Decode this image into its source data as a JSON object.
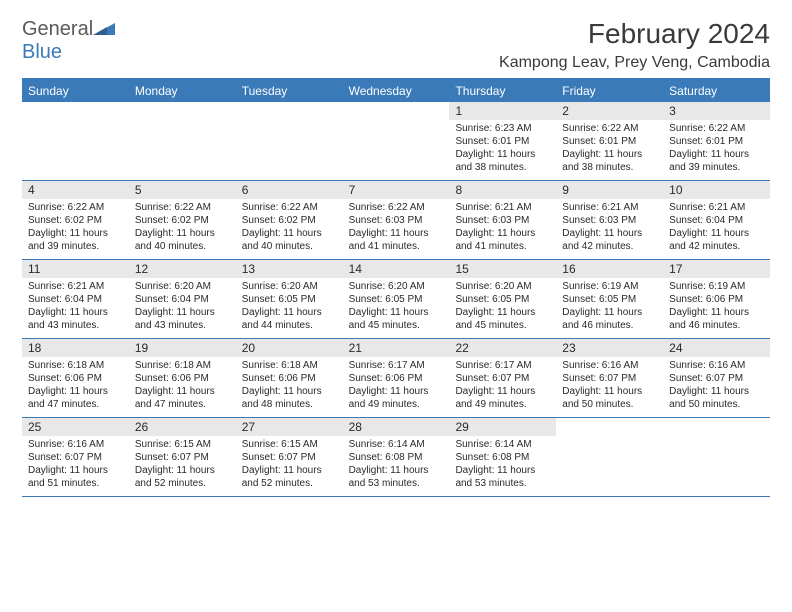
{
  "logo": {
    "text1": "General",
    "text2": "Blue",
    "icon_color": "#3a7ab8"
  },
  "title": "February 2024",
  "location": "Kampong Leav, Prey Veng, Cambodia",
  "colors": {
    "header_bg": "#3a7ab8",
    "header_text": "#ffffff",
    "daynum_bg": "#e8e8e8",
    "border": "#3a7ab8",
    "text": "#2a2a2a"
  },
  "day_names": [
    "Sunday",
    "Monday",
    "Tuesday",
    "Wednesday",
    "Thursday",
    "Friday",
    "Saturday"
  ],
  "weeks": [
    [
      {
        "empty": true
      },
      {
        "empty": true
      },
      {
        "empty": true
      },
      {
        "empty": true
      },
      {
        "n": "1",
        "sr": "6:23 AM",
        "ss": "6:01 PM",
        "dl": "11 hours and 38 minutes."
      },
      {
        "n": "2",
        "sr": "6:22 AM",
        "ss": "6:01 PM",
        "dl": "11 hours and 38 minutes."
      },
      {
        "n": "3",
        "sr": "6:22 AM",
        "ss": "6:01 PM",
        "dl": "11 hours and 39 minutes."
      }
    ],
    [
      {
        "n": "4",
        "sr": "6:22 AM",
        "ss": "6:02 PM",
        "dl": "11 hours and 39 minutes."
      },
      {
        "n": "5",
        "sr": "6:22 AM",
        "ss": "6:02 PM",
        "dl": "11 hours and 40 minutes."
      },
      {
        "n": "6",
        "sr": "6:22 AM",
        "ss": "6:02 PM",
        "dl": "11 hours and 40 minutes."
      },
      {
        "n": "7",
        "sr": "6:22 AM",
        "ss": "6:03 PM",
        "dl": "11 hours and 41 minutes."
      },
      {
        "n": "8",
        "sr": "6:21 AM",
        "ss": "6:03 PM",
        "dl": "11 hours and 41 minutes."
      },
      {
        "n": "9",
        "sr": "6:21 AM",
        "ss": "6:03 PM",
        "dl": "11 hours and 42 minutes."
      },
      {
        "n": "10",
        "sr": "6:21 AM",
        "ss": "6:04 PM",
        "dl": "11 hours and 42 minutes."
      }
    ],
    [
      {
        "n": "11",
        "sr": "6:21 AM",
        "ss": "6:04 PM",
        "dl": "11 hours and 43 minutes."
      },
      {
        "n": "12",
        "sr": "6:20 AM",
        "ss": "6:04 PM",
        "dl": "11 hours and 43 minutes."
      },
      {
        "n": "13",
        "sr": "6:20 AM",
        "ss": "6:05 PM",
        "dl": "11 hours and 44 minutes."
      },
      {
        "n": "14",
        "sr": "6:20 AM",
        "ss": "6:05 PM",
        "dl": "11 hours and 45 minutes."
      },
      {
        "n": "15",
        "sr": "6:20 AM",
        "ss": "6:05 PM",
        "dl": "11 hours and 45 minutes."
      },
      {
        "n": "16",
        "sr": "6:19 AM",
        "ss": "6:05 PM",
        "dl": "11 hours and 46 minutes."
      },
      {
        "n": "17",
        "sr": "6:19 AM",
        "ss": "6:06 PM",
        "dl": "11 hours and 46 minutes."
      }
    ],
    [
      {
        "n": "18",
        "sr": "6:18 AM",
        "ss": "6:06 PM",
        "dl": "11 hours and 47 minutes."
      },
      {
        "n": "19",
        "sr": "6:18 AM",
        "ss": "6:06 PM",
        "dl": "11 hours and 47 minutes."
      },
      {
        "n": "20",
        "sr": "6:18 AM",
        "ss": "6:06 PM",
        "dl": "11 hours and 48 minutes."
      },
      {
        "n": "21",
        "sr": "6:17 AM",
        "ss": "6:06 PM",
        "dl": "11 hours and 49 minutes."
      },
      {
        "n": "22",
        "sr": "6:17 AM",
        "ss": "6:07 PM",
        "dl": "11 hours and 49 minutes."
      },
      {
        "n": "23",
        "sr": "6:16 AM",
        "ss": "6:07 PM",
        "dl": "11 hours and 50 minutes."
      },
      {
        "n": "24",
        "sr": "6:16 AM",
        "ss": "6:07 PM",
        "dl": "11 hours and 50 minutes."
      }
    ],
    [
      {
        "n": "25",
        "sr": "6:16 AM",
        "ss": "6:07 PM",
        "dl": "11 hours and 51 minutes."
      },
      {
        "n": "26",
        "sr": "6:15 AM",
        "ss": "6:07 PM",
        "dl": "11 hours and 52 minutes."
      },
      {
        "n": "27",
        "sr": "6:15 AM",
        "ss": "6:07 PM",
        "dl": "11 hours and 52 minutes."
      },
      {
        "n": "28",
        "sr": "6:14 AM",
        "ss": "6:08 PM",
        "dl": "11 hours and 53 minutes."
      },
      {
        "n": "29",
        "sr": "6:14 AM",
        "ss": "6:08 PM",
        "dl": "11 hours and 53 minutes."
      },
      {
        "empty": true
      },
      {
        "empty": true
      }
    ]
  ],
  "labels": {
    "sunrise": "Sunrise:",
    "sunset": "Sunset:",
    "daylight": "Daylight:"
  }
}
